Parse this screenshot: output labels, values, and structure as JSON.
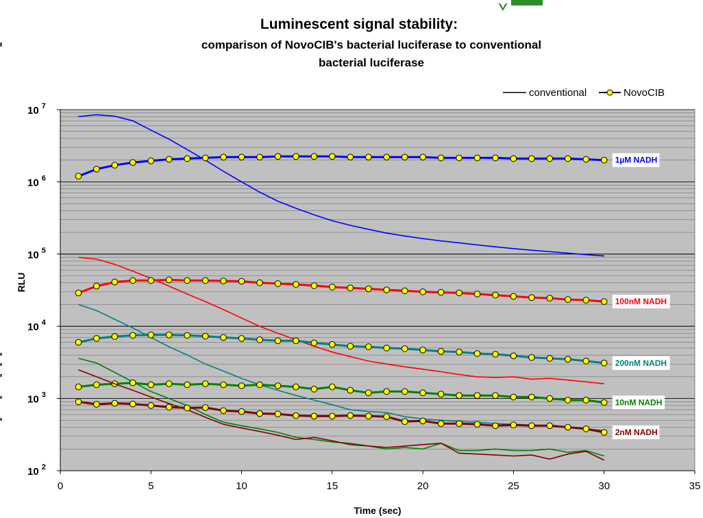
{
  "chart_data": {
    "type": "line",
    "title": "Luminescent signal stability:",
    "subtitle": "comparison of NovoCIB's bacterial luciferase to conventional bacterial luciferase",
    "subtitle_lines": [
      "comparison of NovoCIB's bacterial luciferase to conventional",
      "bacterial luciferase"
    ],
    "xlabel": "Time (sec)",
    "ylabel": "RLU",
    "xlim": [
      0,
      35
    ],
    "ylim": [
      100,
      10000000
    ],
    "yscale": "log",
    "x_ticks": [
      "0",
      "5",
      "10",
      "15",
      "20",
      "25",
      "30",
      "35"
    ],
    "y_ticks": [
      {
        "base": "10",
        "exp": "2",
        "value": 100
      },
      {
        "base": "10",
        "exp": "3",
        "value": 1000
      },
      {
        "base": "10",
        "exp": "4",
        "value": 10000
      },
      {
        "base": "10",
        "exp": "5",
        "value": 100000
      },
      {
        "base": "10",
        "exp": "6",
        "value": 1000000
      },
      {
        "base": "10",
        "exp": "7",
        "value": 10000000
      }
    ],
    "grid": true,
    "plot_background": "#c0c0c0",
    "legend_position": "top-right",
    "legend": [
      {
        "label": "conventional",
        "style": "plain-line"
      },
      {
        "label": "NovoCIB",
        "style": "line-with-markers"
      }
    ],
    "marker_color": "#ffff00",
    "series": [
      {
        "name": "1µM NADH",
        "label": "1µM NADH",
        "color": "#0000ff",
        "label_at": 2000000,
        "conventional": {
          "x": [
            1,
            2,
            3,
            4,
            5,
            6,
            7,
            8,
            9,
            10,
            11,
            12,
            13,
            14,
            15,
            16,
            17,
            18,
            19,
            20,
            21,
            22,
            23,
            24,
            25,
            26,
            27,
            28,
            29,
            30
          ],
          "y": [
            8000000,
            8500000,
            8100000,
            7000000,
            5200000,
            3900000,
            2800000,
            2000000,
            1400000,
            1000000,
            720000,
            540000,
            430000,
            350000,
            290000,
            250000,
            220000,
            195000,
            178000,
            164000,
            152000,
            143000,
            134000,
            126000,
            119000,
            113000,
            108000,
            103000,
            98000,
            94000
          ]
        },
        "novocib": {
          "x": [
            1,
            2,
            3,
            4,
            5,
            6,
            7,
            8,
            9,
            10,
            11,
            12,
            13,
            14,
            15,
            16,
            17,
            18,
            19,
            20,
            21,
            22,
            23,
            24,
            25,
            26,
            27,
            28,
            29,
            30
          ],
          "y": [
            1200000,
            1500000,
            1700000,
            1850000,
            1950000,
            2050000,
            2100000,
            2150000,
            2200000,
            2200000,
            2200000,
            2250000,
            2250000,
            2250000,
            2250000,
            2200000,
            2200000,
            2200000,
            2200000,
            2200000,
            2150000,
            2150000,
            2150000,
            2150000,
            2100000,
            2100000,
            2100000,
            2100000,
            2050000,
            2000000
          ]
        }
      },
      {
        "name": "100nM NADH",
        "label": "100nM NADH",
        "color": "#ff0000",
        "label_at": 22000,
        "conventional": {
          "x": [
            1,
            2,
            3,
            4,
            5,
            6,
            7,
            8,
            9,
            10,
            11,
            12,
            13,
            14,
            15,
            16,
            17,
            18,
            19,
            20,
            21,
            22,
            23,
            24,
            25,
            26,
            27,
            28,
            29,
            30
          ],
          "y": [
            90000,
            85000,
            72000,
            58000,
            46000,
            36000,
            28000,
            22000,
            17000,
            13000,
            10000,
            8000,
            6500,
            5300,
            4400,
            3800,
            3300,
            3000,
            2750,
            2550,
            2350,
            2150,
            2000,
            1950,
            2000,
            1850,
            1900,
            1800,
            1700,
            1600
          ]
        },
        "novocib": {
          "x": [
            1,
            2,
            3,
            4,
            5,
            6,
            7,
            8,
            9,
            10,
            11,
            12,
            13,
            14,
            15,
            16,
            17,
            18,
            19,
            20,
            21,
            22,
            23,
            24,
            25,
            26,
            27,
            28,
            29,
            30
          ],
          "y": [
            29000,
            36000,
            41000,
            43000,
            43000,
            44000,
            43000,
            43000,
            42500,
            42000,
            40000,
            39000,
            38000,
            36500,
            35000,
            34000,
            33000,
            32000,
            31000,
            30000,
            29500,
            29000,
            28000,
            27000,
            26000,
            25000,
            24500,
            23500,
            23000,
            22000
          ]
        }
      },
      {
        "name": "200nM NADH",
        "label": "200nM NADH",
        "color": "#008080",
        "label_at": 3100,
        "conventional": {
          "x": [
            1,
            2,
            3,
            4,
            5,
            6,
            7,
            8,
            9,
            10,
            11,
            12,
            13,
            14,
            15,
            16,
            17,
            18,
            19,
            20,
            21,
            22,
            23,
            24,
            25,
            26,
            27,
            28,
            29,
            30
          ],
          "y": [
            20000,
            16500,
            12500,
            9500,
            7000,
            5200,
            4000,
            3000,
            2400,
            1900,
            1550,
            1300,
            1100,
            950,
            820,
            700,
            660,
            640,
            560,
            520,
            500,
            480,
            470,
            450,
            440,
            430,
            420,
            400,
            380,
            360
          ]
        },
        "novocib": {
          "x": [
            1,
            2,
            3,
            4,
            5,
            6,
            7,
            8,
            9,
            10,
            11,
            12,
            13,
            14,
            15,
            16,
            17,
            18,
            19,
            20,
            21,
            22,
            23,
            24,
            25,
            26,
            27,
            28,
            29,
            30
          ],
          "y": [
            6000,
            6800,
            7200,
            7500,
            7600,
            7600,
            7500,
            7300,
            7000,
            6800,
            6500,
            6300,
            6300,
            5900,
            5600,
            5300,
            5200,
            5000,
            4900,
            4700,
            4500,
            4400,
            4200,
            4100,
            3900,
            3700,
            3600,
            3500,
            3300,
            3100
          ]
        }
      },
      {
        "name": "10nM NADH",
        "label": "10nM NADH",
        "color": "#008000",
        "label_at": 880,
        "conventional": {
          "x": [
            1,
            2,
            3,
            4,
            5,
            6,
            7,
            8,
            9,
            10,
            11,
            12,
            13,
            14,
            15,
            16,
            17,
            18,
            19,
            20,
            21,
            22,
            23,
            24,
            25,
            26,
            27,
            28,
            29,
            30
          ],
          "y": [
            3600,
            3100,
            2300,
            1700,
            1250,
            1000,
            800,
            600,
            470,
            420,
            380,
            340,
            290,
            270,
            250,
            240,
            220,
            200,
            210,
            200,
            240,
            190,
            190,
            200,
            190,
            190,
            200,
            180,
            190,
            160
          ]
        },
        "novocib": {
          "x": [
            1,
            2,
            3,
            4,
            5,
            6,
            7,
            8,
            9,
            10,
            11,
            12,
            13,
            14,
            15,
            16,
            17,
            18,
            19,
            20,
            21,
            22,
            23,
            24,
            25,
            26,
            27,
            28,
            29,
            30
          ],
          "y": [
            1450,
            1550,
            1600,
            1650,
            1550,
            1600,
            1550,
            1600,
            1550,
            1500,
            1550,
            1500,
            1450,
            1350,
            1450,
            1300,
            1200,
            1250,
            1250,
            1200,
            1150,
            1100,
            1100,
            1100,
            1050,
            1050,
            1000,
            950,
            950,
            880
          ]
        }
      },
      {
        "name": "2nM NADH",
        "label": "2nM NADH",
        "color": "#800000",
        "label_at": 340,
        "conventional": {
          "x": [
            1,
            2,
            3,
            4,
            5,
            6,
            7,
            8,
            9,
            10,
            11,
            12,
            13,
            14,
            15,
            16,
            17,
            18,
            19,
            20,
            21,
            22,
            23,
            24,
            25,
            26,
            27,
            28,
            29,
            30
          ],
          "y": [
            2500,
            2000,
            1600,
            1300,
            1050,
            850,
            700,
            550,
            440,
            390,
            350,
            310,
            270,
            290,
            260,
            230,
            220,
            210,
            220,
            230,
            240,
            175,
            170,
            165,
            160,
            165,
            145,
            170,
            185,
            140
          ]
        },
        "novocib": {
          "x": [
            1,
            2,
            3,
            4,
            5,
            6,
            7,
            8,
            9,
            10,
            11,
            12,
            13,
            14,
            15,
            16,
            17,
            18,
            19,
            20,
            21,
            22,
            23,
            24,
            25,
            26,
            27,
            28,
            29,
            30
          ],
          "y": [
            900,
            830,
            860,
            840,
            800,
            760,
            740,
            750,
            680,
            660,
            620,
            610,
            580,
            570,
            570,
            580,
            570,
            560,
            480,
            490,
            450,
            450,
            440,
            420,
            430,
            420,
            420,
            400,
            380,
            340
          ]
        }
      }
    ]
  }
}
